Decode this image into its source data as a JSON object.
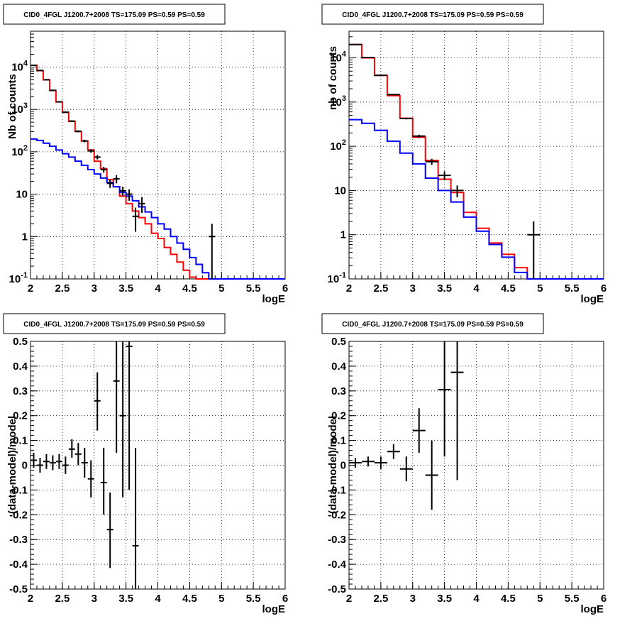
{
  "chart_data": [
    {
      "id": "p1",
      "type": "histogram",
      "title": "CID0_4FGL J1200.7+2008 TS=175.09 PS=0.59 PS=0.59",
      "xlabel": "logE",
      "ylabel": "Nb of counts",
      "xlim": [
        2,
        6
      ],
      "ylim": [
        0.1,
        70000
      ],
      "log_y": true,
      "grid": true,
      "xticks": [
        "2",
        "2.5",
        "3",
        "3.5",
        "4",
        "4.5",
        "5",
        "5.5",
        "6"
      ],
      "yticks": [
        "10-1",
        "1",
        "10",
        "102",
        "103",
        "104"
      ],
      "series": [
        {
          "color": "#ff0000",
          "bin_width": 0.1,
          "x0": 2.0,
          "values": [
            11000,
            8200,
            5000,
            2800,
            1500,
            850,
            520,
            300,
            180,
            110,
            60,
            40,
            22,
            15,
            9,
            6,
            4,
            2.8,
            2.0,
            1.2,
            0.9,
            0.55,
            0.38,
            0.25,
            0.16,
            0.11,
            0.1,
            0.1,
            0.1,
            0.1,
            0.1,
            0.1,
            0.1,
            0.1,
            0.1,
            0.1,
            0.1,
            0.1,
            0.1,
            0.1
          ]
        },
        {
          "color": "#0000ff",
          "bin_width": 0.1,
          "x0": 2.0,
          "values": [
            200,
            185,
            160,
            135,
            110,
            90,
            75,
            60,
            48,
            38,
            30,
            24,
            19,
            15,
            11,
            9,
            7,
            5,
            3.8,
            2.8,
            2.0,
            1.5,
            1.0,
            0.7,
            0.5,
            0.32,
            0.22,
            0.14,
            0.1,
            0.1,
            0.1,
            0.1,
            0.1,
            0.1,
            0.1,
            0.1,
            0.1,
            0.1,
            0.1,
            0.1
          ]
        }
      ],
      "points": [
        {
          "x": 2.05,
          "y": 11000,
          "ylo": 10900,
          "yhi": 11100
        },
        {
          "x": 2.15,
          "y": 8300,
          "ylo": 8200,
          "yhi": 8400
        },
        {
          "x": 2.25,
          "y": 5000,
          "ylo": 4930,
          "yhi": 5070
        },
        {
          "x": 2.35,
          "y": 2820,
          "ylo": 2770,
          "yhi": 2870
        },
        {
          "x": 2.45,
          "y": 1510,
          "ylo": 1470,
          "yhi": 1550
        },
        {
          "x": 2.55,
          "y": 860,
          "ylo": 830,
          "yhi": 890
        },
        {
          "x": 2.65,
          "y": 530,
          "ylo": 507,
          "yhi": 553
        },
        {
          "x": 2.75,
          "y": 305,
          "ylo": 288,
          "yhi": 322
        },
        {
          "x": 2.85,
          "y": 180,
          "ylo": 167,
          "yhi": 193
        },
        {
          "x": 2.95,
          "y": 105,
          "ylo": 95,
          "yhi": 115
        },
        {
          "x": 3.05,
          "y": 75,
          "ylo": 66,
          "yhi": 84
        },
        {
          "x": 3.15,
          "y": 38,
          "ylo": 32,
          "yhi": 44
        },
        {
          "x": 3.25,
          "y": 18,
          "ylo": 14,
          "yhi": 22
        },
        {
          "x": 3.35,
          "y": 23,
          "ylo": 18,
          "yhi": 28
        },
        {
          "x": 3.45,
          "y": 12,
          "ylo": 9,
          "yhi": 15
        },
        {
          "x": 3.55,
          "y": 10,
          "ylo": 7,
          "yhi": 13
        },
        {
          "x": 3.65,
          "y": 3,
          "ylo": 1.3,
          "yhi": 4.8
        },
        {
          "x": 3.75,
          "y": 6,
          "ylo": 3.6,
          "yhi": 8.5
        },
        {
          "x": 4.85,
          "y": 1,
          "ylo": 0.1,
          "yhi": 2
        }
      ]
    },
    {
      "id": "p2",
      "type": "histogram",
      "title": "CID0_4FGL J1200.7+2008 TS=175.09 PS=0.59 PS=0.59",
      "xlabel": "logE",
      "ylabel": "nb of counts",
      "xlim": [
        2,
        6
      ],
      "ylim": [
        0.1,
        40000
      ],
      "log_y": true,
      "grid": true,
      "xticks": [
        "2",
        "2.5",
        "3",
        "3.5",
        "4",
        "4.5",
        "5",
        "5.5",
        "6"
      ],
      "yticks": [
        "10-1",
        "1",
        "10",
        "102",
        "103",
        "104"
      ],
      "series": [
        {
          "color": "#ff0000",
          "bin_width": 0.2,
          "x0": 2.0,
          "values": [
            20000,
            10000,
            4000,
            1400,
            430,
            160,
            48,
            18,
            9,
            3.2,
            1.4,
            0.65,
            0.36,
            0.18,
            0.1,
            0.1,
            0.1,
            0.1,
            0.1,
            0.1
          ]
        },
        {
          "color": "#0000ff",
          "bin_width": 0.2,
          "x0": 2.0,
          "values": [
            400,
            330,
            230,
            130,
            70,
            40,
            19,
            10,
            5.5,
            2.5,
            1.2,
            0.6,
            0.31,
            0.14,
            0.1,
            0.1,
            0.1,
            0.1,
            0.1,
            0.1
          ]
        }
      ],
      "points": [
        {
          "x": 2.1,
          "y": 20000,
          "ylo": 19850,
          "yhi": 20150
        },
        {
          "x": 2.3,
          "y": 10200,
          "ylo": 10100,
          "yhi": 10300
        },
        {
          "x": 2.5,
          "y": 4020,
          "ylo": 3960,
          "yhi": 4080
        },
        {
          "x": 2.7,
          "y": 1480,
          "ylo": 1440,
          "yhi": 1520
        },
        {
          "x": 2.9,
          "y": 425,
          "ylo": 405,
          "yhi": 445
        },
        {
          "x": 3.1,
          "y": 170,
          "ylo": 157,
          "yhi": 183
        },
        {
          "x": 3.3,
          "y": 45,
          "ylo": 38,
          "yhi": 52
        },
        {
          "x": 3.5,
          "y": 22,
          "ylo": 17,
          "yhi": 27
        },
        {
          "x": 3.7,
          "y": 10,
          "ylo": 7,
          "yhi": 13
        },
        {
          "x": 4.9,
          "y": 1,
          "ylo": 0.1,
          "yhi": 2
        }
      ]
    },
    {
      "id": "p3",
      "type": "scatter",
      "title": "CID0_4FGL J1200.7+2008 TS=175.09 PS=0.59 PS=0.59",
      "xlabel": "logE",
      "ylabel": "(data-model)/model",
      "xlim": [
        2,
        6
      ],
      "ylim": [
        -0.5,
        0.5
      ],
      "log_y": false,
      "grid": true,
      "xticks": [
        "2",
        "2.5",
        "3",
        "3.5",
        "4",
        "4.5",
        "5",
        "5.5",
        "6"
      ],
      "yticks": [
        "-0.5",
        "-0.4",
        "-0.3",
        "-0.2",
        "-0.1",
        "0",
        "0.1",
        "0.2",
        "0.3",
        "0.4",
        "0.5"
      ],
      "xerr": 0.05,
      "points": [
        {
          "x": 2.05,
          "y": 0.02,
          "ylo": -0.01,
          "yhi": 0.05
        },
        {
          "x": 2.15,
          "y": 0.0,
          "ylo": -0.03,
          "yhi": 0.03
        },
        {
          "x": 2.25,
          "y": 0.015,
          "ylo": -0.015,
          "yhi": 0.045
        },
        {
          "x": 2.35,
          "y": 0.01,
          "ylo": -0.02,
          "yhi": 0.04
        },
        {
          "x": 2.45,
          "y": 0.015,
          "ylo": -0.015,
          "yhi": 0.045
        },
        {
          "x": 2.55,
          "y": 0.0,
          "ylo": -0.035,
          "yhi": 0.035
        },
        {
          "x": 2.65,
          "y": 0.065,
          "ylo": 0.03,
          "yhi": 0.105
        },
        {
          "x": 2.75,
          "y": 0.045,
          "ylo": 0.0,
          "yhi": 0.09
        },
        {
          "x": 2.85,
          "y": 0.01,
          "ylo": -0.05,
          "yhi": 0.07
        },
        {
          "x": 2.95,
          "y": -0.055,
          "ylo": -0.13,
          "yhi": 0.02
        },
        {
          "x": 3.05,
          "y": 0.26,
          "ylo": 0.14,
          "yhi": 0.375
        },
        {
          "x": 3.15,
          "y": -0.07,
          "ylo": -0.2,
          "yhi": 0.07
        },
        {
          "x": 3.25,
          "y": -0.26,
          "ylo": -0.415,
          "yhi": -0.11
        },
        {
          "x": 3.35,
          "y": 0.34,
          "ylo": 0.05,
          "yhi": 0.5
        },
        {
          "x": 3.45,
          "y": 0.2,
          "ylo": -0.13,
          "yhi": 0.5
        },
        {
          "x": 3.55,
          "y": 0.48,
          "ylo": -0.1,
          "yhi": 0.5
        },
        {
          "x": 3.65,
          "y": -0.325,
          "ylo": -0.5,
          "yhi": 0.07
        }
      ]
    },
    {
      "id": "p4",
      "type": "scatter",
      "title": "CID0_4FGL J1200.7+2008 TS=175.09 PS=0.59 PS=0.59",
      "xlabel": "logE",
      "ylabel": "(data-model)/model",
      "xlim": [
        2,
        6
      ],
      "ylim": [
        -0.5,
        0.5
      ],
      "log_y": false,
      "grid": true,
      "xticks": [
        "2",
        "2.5",
        "3",
        "3.5",
        "4",
        "4.5",
        "5",
        "5.5",
        "6"
      ],
      "yticks": [
        "-0.5",
        "-0.4",
        "-0.3",
        "-0.2",
        "-0.1",
        "0",
        "0.1",
        "0.2",
        "0.3",
        "0.4",
        "0.5"
      ],
      "xerr": 0.1,
      "points": [
        {
          "x": 2.1,
          "y": 0.01,
          "ylo": -0.01,
          "yhi": 0.03
        },
        {
          "x": 2.3,
          "y": 0.015,
          "ylo": -0.005,
          "yhi": 0.035
        },
        {
          "x": 2.5,
          "y": 0.01,
          "ylo": -0.015,
          "yhi": 0.035
        },
        {
          "x": 2.7,
          "y": 0.055,
          "ylo": 0.025,
          "yhi": 0.085
        },
        {
          "x": 2.9,
          "y": -0.015,
          "ylo": -0.065,
          "yhi": 0.035
        },
        {
          "x": 3.1,
          "y": 0.14,
          "ylo": 0.05,
          "yhi": 0.23
        },
        {
          "x": 3.3,
          "y": -0.04,
          "ylo": -0.18,
          "yhi": 0.1
        },
        {
          "x": 3.5,
          "y": 0.305,
          "ylo": 0.035,
          "yhi": 0.5
        },
        {
          "x": 3.7,
          "y": 0.375,
          "ylo": -0.06,
          "yhi": 0.5
        }
      ]
    }
  ]
}
